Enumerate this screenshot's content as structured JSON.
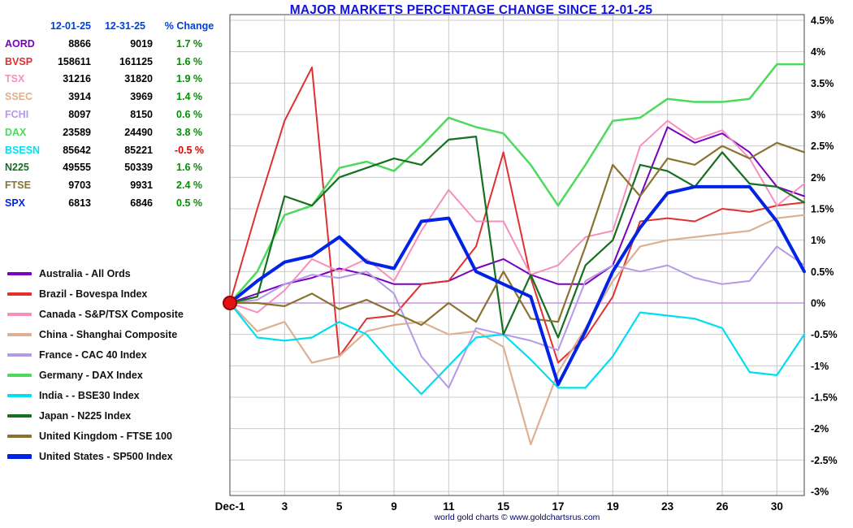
{
  "title": "MAJOR MARKETS PERCENTAGE CHANGE SINCE 12-01-25",
  "footer": "world gold charts © www.goldchartsrus.com",
  "table": {
    "headers": [
      "12-01-25",
      "12-31-25",
      "% Change"
    ],
    "rows": [
      {
        "symbol": "AORD",
        "color": "#7a00bf",
        "v1": "8866",
        "v2": "9019",
        "pct": "1.7 %"
      },
      {
        "symbol": "BVSP",
        "color": "#e03030",
        "v1": "158611",
        "v2": "161125",
        "pct": "1.6 %"
      },
      {
        "symbol": "TSX",
        "color": "#f78fbe",
        "v1": "31216",
        "v2": "31820",
        "pct": "1.9 %"
      },
      {
        "symbol": "SSEC",
        "color": "#ddb093",
        "v1": "3914",
        "v2": "3969",
        "pct": "1.4 %"
      },
      {
        "symbol": "FCHI",
        "color": "#b399e8",
        "v1": "8097",
        "v2": "8150",
        "pct": "0.6 %"
      },
      {
        "symbol": "DAX",
        "color": "#4cd95e",
        "v1": "23589",
        "v2": "24490",
        "pct": "3.8 %"
      },
      {
        "symbol": "BSESN",
        "color": "#00dff2",
        "v1": "85642",
        "v2": "85221",
        "pct": "-0.5 %"
      },
      {
        "symbol": "N225",
        "color": "#15701f",
        "v1": "49555",
        "v2": "50339",
        "pct": "1.6 %"
      },
      {
        "symbol": "FTSE",
        "color": "#8a7330",
        "v1": "9703",
        "v2": "9931",
        "pct": "2.4 %"
      },
      {
        "symbol": "SPX",
        "color": "#0023e5",
        "v1": "6813",
        "v2": "6846",
        "pct": "0.5 %"
      }
    ]
  },
  "legend": [
    {
      "label": "Australia - All Ords",
      "color": "#7a00bf",
      "thick": false
    },
    {
      "label": "Brazil - Bovespa Index",
      "color": "#e03030",
      "thick": false
    },
    {
      "label": "Canada - S&P/TSX Composite",
      "color": "#f78fbe",
      "thick": false
    },
    {
      "label": "China - Shanghai Composite",
      "color": "#ddb093",
      "thick": false
    },
    {
      "label": "France - CAC 40 Index",
      "color": "#b399e8",
      "thick": false
    },
    {
      "label": "Germany - DAX Index",
      "color": "#4cd95e",
      "thick": false
    },
    {
      "label": "India -  - BSE30 Index",
      "color": "#00dff2",
      "thick": false
    },
    {
      "label": "Japan - N225 Index",
      "color": "#15701f",
      "thick": false
    },
    {
      "label": "United Kingdom - FTSE 100",
      "color": "#8a7330",
      "thick": false
    },
    {
      "label": "United States - SP500 Index",
      "color": "#0023e5",
      "thick": true
    }
  ],
  "chart_data": {
    "type": "line",
    "title": "MAJOR MARKETS PERCENTAGE CHANGE SINCE 12-01-25",
    "ylim": [
      -3,
      4.5
    ],
    "y_step": 0.5,
    "y_tick_labels": [
      "4.5%",
      "4%",
      "3.5%",
      "3%",
      "2.5%",
      "2%",
      "1.5%",
      "1%",
      "0.5%",
      "0%",
      "-0.5%",
      "-1%",
      "-1.5%",
      "-2%",
      "-2.5%",
      "-3%"
    ],
    "x_ticks": [
      "Dec-1",
      "3",
      "5",
      "9",
      "11",
      "15",
      "17",
      "19",
      "23",
      "26",
      "30"
    ],
    "x_tick_indices": [
      0,
      2,
      4,
      6,
      8,
      10,
      12,
      14,
      16,
      18,
      20
    ],
    "points_count": 22,
    "grid": true,
    "grid_color": "#cccccc",
    "zero_line_color": "#bc7fd6",
    "origin_marker": {
      "color": "#e31212",
      "edge": "#990000",
      "x_index": 0,
      "value": 0
    },
    "legend_position": "left",
    "series": [
      {
        "name": "AORD",
        "label": "Australia - All Ords",
        "color": "#7a00bf",
        "width": 2,
        "values": [
          0,
          0.15,
          0.3,
          0.4,
          0.55,
          0.45,
          0.3,
          0.3,
          0.35,
          0.55,
          0.7,
          0.45,
          0.3,
          0.3,
          0.6,
          1.7,
          2.8,
          2.55,
          2.7,
          2.4,
          1.85,
          1.7
        ]
      },
      {
        "name": "BVSP",
        "label": "Brazil - Bovespa Index",
        "color": "#e03030",
        "width": 2,
        "values": [
          0,
          1.5,
          2.9,
          3.75,
          -0.85,
          -0.25,
          -0.2,
          0.3,
          0.35,
          0.9,
          2.4,
          0.4,
          -0.95,
          -0.55,
          0.1,
          1.3,
          1.35,
          1.3,
          1.5,
          1.45,
          1.55,
          1.6
        ]
      },
      {
        "name": "TSX",
        "label": "Canada - S&P/TSX Composite",
        "color": "#f78fbe",
        "width": 2,
        "values": [
          0,
          -0.15,
          0.2,
          0.7,
          0.5,
          0.7,
          0.35,
          1.15,
          1.8,
          1.3,
          1.3,
          0.45,
          0.6,
          1.05,
          1.15,
          2.5,
          2.9,
          2.6,
          2.75,
          2.3,
          1.55,
          1.9
        ]
      },
      {
        "name": "SSEC",
        "label": "China - Shanghai Composite",
        "color": "#ddb093",
        "width": 2.2,
        "values": [
          0,
          -0.45,
          -0.3,
          -0.95,
          -0.85,
          -0.45,
          -0.35,
          -0.3,
          -0.5,
          -0.45,
          -0.7,
          -2.25,
          -1.1,
          -0.4,
          0.35,
          0.9,
          1.0,
          1.05,
          1.1,
          1.15,
          1.35,
          1.4
        ]
      },
      {
        "name": "FCHI",
        "label": "France - CAC 40 Index",
        "color": "#b399e8",
        "width": 2,
        "values": [
          0,
          0.05,
          0.3,
          0.45,
          0.4,
          0.5,
          0.15,
          -0.85,
          -1.35,
          -0.4,
          -0.5,
          -0.6,
          -0.75,
          0.35,
          0.6,
          0.5,
          0.6,
          0.4,
          0.3,
          0.35,
          0.9,
          0.6
        ]
      },
      {
        "name": "DAX",
        "label": "Germany - DAX Index",
        "color": "#4cd95e",
        "width": 2.5,
        "values": [
          0,
          0.5,
          1.4,
          1.55,
          2.15,
          2.25,
          2.1,
          2.5,
          2.95,
          2.8,
          2.7,
          2.2,
          1.55,
          2.2,
          2.9,
          2.95,
          3.25,
          3.2,
          3.2,
          3.25,
          3.8,
          3.8
        ]
      },
      {
        "name": "BSESN",
        "label": "India -  - BSE30 Index",
        "color": "#00dff2",
        "width": 2.2,
        "values": [
          0,
          -0.55,
          -0.6,
          -0.55,
          -0.3,
          -0.5,
          -1.0,
          -1.45,
          -1.0,
          -0.55,
          -0.5,
          -0.9,
          -1.35,
          -1.35,
          -0.85,
          -0.15,
          -0.2,
          -0.25,
          -0.4,
          -1.1,
          -1.15,
          -0.5
        ]
      },
      {
        "name": "N225",
        "label": "Japan - N225 Index",
        "color": "#15701f",
        "width": 2.2,
        "values": [
          0,
          0.1,
          1.7,
          1.55,
          2.0,
          2.15,
          2.3,
          2.2,
          2.6,
          2.65,
          -0.5,
          0.45,
          -0.55,
          0.6,
          1.0,
          2.2,
          2.1,
          1.85,
          2.4,
          1.9,
          1.85,
          1.6
        ]
      },
      {
        "name": "FTSE",
        "label": "United Kingdom - FTSE 100",
        "color": "#8a7330",
        "width": 2.2,
        "values": [
          0,
          0.0,
          -0.05,
          0.15,
          -0.1,
          0.05,
          -0.15,
          -0.35,
          0.0,
          -0.3,
          0.5,
          -0.25,
          -0.3,
          0.9,
          2.2,
          1.7,
          2.3,
          2.2,
          2.5,
          2.3,
          2.55,
          2.4
        ]
      },
      {
        "name": "SPX",
        "label": "United States - SP500 Index",
        "color": "#0023e5",
        "width": 4,
        "values": [
          0,
          0.35,
          0.65,
          0.75,
          1.05,
          0.65,
          0.55,
          1.3,
          1.35,
          0.5,
          0.3,
          0.1,
          -1.3,
          -0.45,
          0.5,
          1.2,
          1.75,
          1.85,
          1.85,
          1.85,
          1.3,
          0.5
        ]
      }
    ]
  }
}
